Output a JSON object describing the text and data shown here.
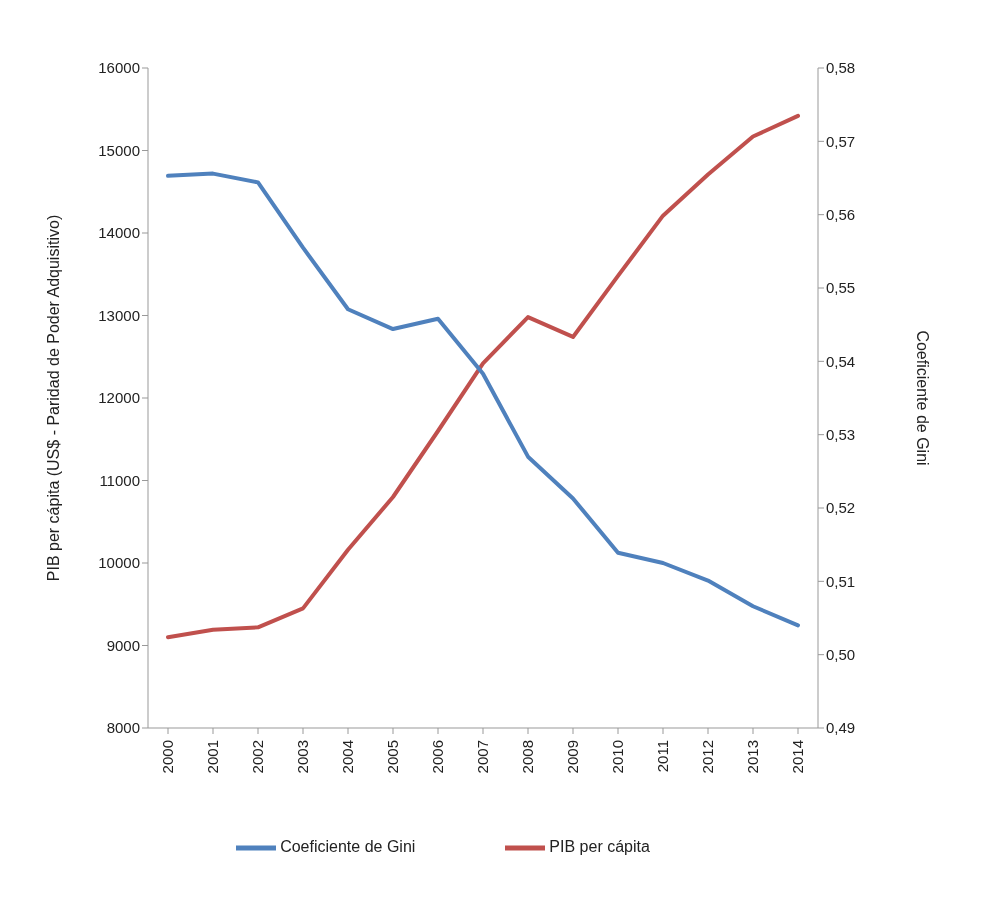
{
  "chart_data": {
    "type": "line",
    "ylabel": "PIB per cápita (US$ - Paridad de Poder Adquisitivo)",
    "y2label": "Coeficiente de Gini",
    "categories": [
      "2000",
      "2001",
      "2002",
      "2003",
      "2004",
      "2005",
      "2006",
      "2007",
      "2008",
      "2009",
      "2010",
      "2011",
      "2012",
      "2013",
      "2014"
    ],
    "series": [
      {
        "name": "PIB per cápita",
        "color": "#c0504d",
        "values": [
          9100,
          9190,
          9220,
          9450,
          10160,
          10800,
          11600,
          12420,
          12980,
          12740,
          13480,
          14210,
          14710,
          15170,
          15420
        ]
      },
      {
        "name": "Coeficiente de Gini",
        "color": "#4f81bd",
        "axis": "y2",
        "values": [
          0.5653,
          0.5656,
          0.5644,
          0.5555,
          0.5471,
          0.5444,
          0.5458,
          0.5383,
          0.527,
          0.5213,
          0.5139,
          0.5125,
          0.5101,
          0.5066,
          0.504
        ]
      }
    ],
    "ylim": [
      8000,
      16000
    ],
    "yticks": [
      8000,
      9000,
      10000,
      11000,
      12000,
      13000,
      14000,
      15000,
      16000
    ],
    "y2lim": [
      0.49,
      0.58
    ],
    "y2ticks": [
      {
        "value": 0.49,
        "label": "0,49"
      },
      {
        "value": 0.5,
        "label": "0,50"
      },
      {
        "value": 0.51,
        "label": "0,51"
      },
      {
        "value": 0.52,
        "label": "0,52"
      },
      {
        "value": 0.53,
        "label": "0,53"
      },
      {
        "value": 0.54,
        "label": "0,54"
      },
      {
        "value": 0.55,
        "label": "0,55"
      },
      {
        "value": 0.56,
        "label": "0,56"
      },
      {
        "value": 0.57,
        "label": "0,57"
      },
      {
        "value": 0.58,
        "label": "0,58"
      }
    ],
    "grid": false,
    "legend": "bottom",
    "marker": "none",
    "line_style": "solid"
  }
}
